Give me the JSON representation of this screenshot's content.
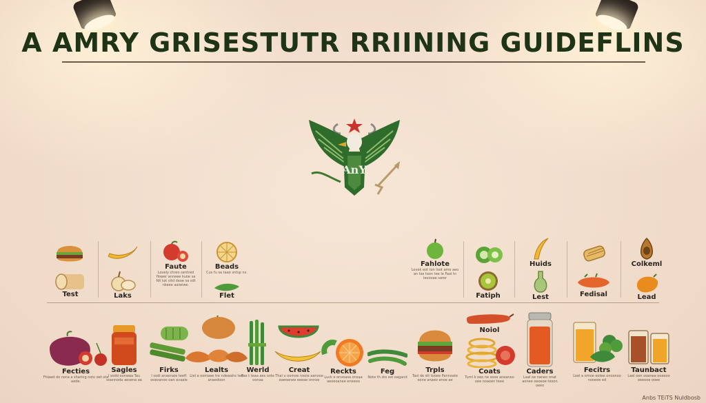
{
  "title": "A AMRY GRISESTUTR RRIINING GUIDEFLINS",
  "emblem": {
    "text": "AnY",
    "icon": "eagle-emblem-icon",
    "colors": {
      "green": "#2f6b2a",
      "star": "#c8342b"
    }
  },
  "top_left_items": [
    {
      "label": "",
      "icon": "burger-icon"
    },
    {
      "label": "Test",
      "icon": "bread-icon"
    },
    {
      "label": "",
      "icon": "banana-icon"
    },
    {
      "label": "Laks",
      "icon": "pear-icon"
    },
    {
      "label": "Faute",
      "icon": "apple-icon",
      "note": "Lovely chreo sentred flower anneee kuoe sa fdt luk sitd daoe sa sdt nkeee aaiwiwe."
    },
    {
      "label": "Beads",
      "icon": "citrus-icon",
      "note": "Cus fu sa taao sntsp ns."
    },
    {
      "label": "Flet",
      "icon": "leaf-icon"
    }
  ],
  "top_right_items": [
    {
      "label": "Fahlote",
      "icon": "green-apple-icon",
      "note": "Lovok eot ton loot ame aeo an tse toon tee le Faoi tn leoooae sarer"
    },
    {
      "label": "",
      "icon": "kiwi-icon"
    },
    {
      "label": "Fatiph",
      "icon": "kiwi-half-icon"
    },
    {
      "label": "Huids",
      "icon": "banana-icon"
    },
    {
      "label": "Lest",
      "icon": "gourd-icon"
    },
    {
      "label": "",
      "icon": "corn-icon"
    },
    {
      "label": "Fedisal",
      "icon": "sweet-potato-icon"
    },
    {
      "label": "Colkeml",
      "icon": "avocado-icon"
    },
    {
      "label": "Lead",
      "icon": "mango-icon"
    }
  ],
  "bottom_items": [
    {
      "label": "Fecties",
      "icon": "plum-icon",
      "note": "Fhlaed do noca a sharing nsto oet ote aede."
    },
    {
      "label": "Sagles",
      "icon": "jam-jar-icon",
      "note": "I sodd oonwaa Tau soannoda aesena aa"
    },
    {
      "label": "Firks",
      "icon": "cucumber-icon",
      "note": "I sodi anaenaie teeft ooavanoo oan avaaie"
    },
    {
      "label": "Lealts",
      "icon": "sweet-potatoes-icon",
      "note": "Llel a oomaee tre ndewahs ted anaedoon"
    },
    {
      "label": "Werld",
      "icon": "asparagus-icon",
      "note": "Fae t teaa aes oote oonaa"
    },
    {
      "label": "Creat",
      "icon": "watermelon-banana-icon",
      "note": "Thal u oomoe nooie aanooe eaeoanee eeeae onnoe"
    },
    {
      "label": "Reckts",
      "icon": "orange-icon",
      "note": "Luck e onvoasa onsaa aeoeoanee eneeoo"
    },
    {
      "label": "Feg",
      "icon": "green-beans-icon",
      "note": "Note th sto sot oagand"
    },
    {
      "label": "Trpls",
      "icon": "burger-icon",
      "note": "Tasl de stt tooee Pannoate oone anaeo anoe ae"
    },
    {
      "label": "Noiol",
      "icon": "sausage-icon"
    },
    {
      "label": "Coats",
      "icon": "noodles-icon",
      "note": "Tuml k oeo ne sooe aneaneo oee ooaoen teee"
    },
    {
      "label": "Caders",
      "icon": "juice-jar-icon",
      "note": "Laal oe naneo onat aonee oeoeoe tooon oeeo"
    },
    {
      "label": "Fecitrs",
      "icon": "juice-broccoli-icon",
      "note": "Loel a omoe eotee onoonoo nooeoe ed"
    },
    {
      "label": "Taunbact",
      "icon": "juice-glasses-icon",
      "note": "Lael oen ooanea ooeeoo oeeooe ooee"
    }
  ],
  "corner_text": "Anbs TEiTS Nuldbosb",
  "colors": {
    "title": "#1f3316",
    "rule": "#6c5a48",
    "background": "#f3e0cf"
  }
}
